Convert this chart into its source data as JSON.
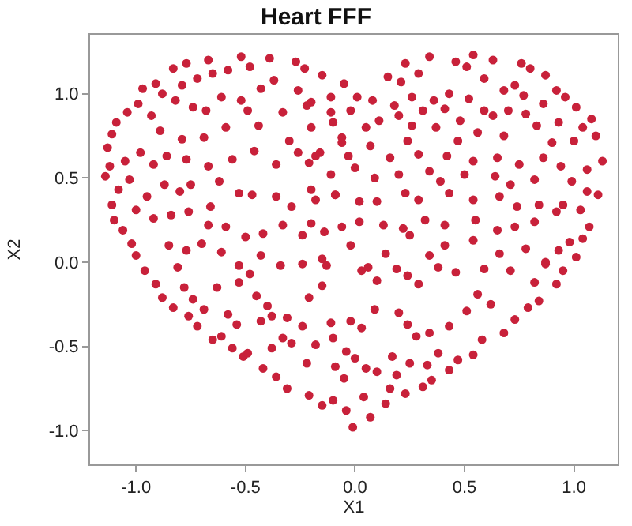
{
  "chart_data": {
    "type": "scatter",
    "title": "Heart FFF",
    "xlabel": "X1",
    "ylabel": "X2",
    "marker": "circle",
    "xlim": [
      -1.21,
      1.2
    ],
    "ylim": [
      -1.2,
      1.35
    ],
    "xticks": [
      {
        "value": -1,
        "label": "-1.0"
      },
      -0.5,
      {
        "value": 0,
        "label": "0.0"
      },
      0.5,
      {
        "value": 1,
        "label": "1.0"
      }
    ],
    "yticks": [
      {
        "value": -1,
        "label": "-1.0"
      },
      -0.5,
      {
        "value": 0,
        "label": "0.0"
      },
      0.5,
      {
        "value": 1,
        "label": "1.0"
      }
    ],
    "series": [
      {
        "color": "#c8213a",
        "x": [
          -1.14,
          -1.12,
          -1.13,
          -1.11,
          -1.09,
          -1.04,
          -0.99,
          -0.97,
          -0.91,
          -0.83,
          -0.77,
          -0.67,
          -0.52,
          -0.39,
          -0.27,
          -0.15,
          -0.05,
          -1.11,
          -1.1,
          -1.06,
          -1.02,
          -1.0,
          -0.96,
          -0.91,
          -0.88,
          -0.83,
          -0.76,
          -0.72,
          -0.65,
          -0.61,
          -0.56,
          -0.51,
          -0.42,
          -0.36,
          -0.31,
          -0.21,
          -0.15,
          -0.04,
          -0.01,
          0.07,
          0.14,
          0.23,
          0.31,
          0.35,
          0.43,
          0.47,
          0.54,
          0.58,
          0.68,
          0.73,
          0.79,
          0.84,
          0.92,
          0.95,
          0.87,
          1.11,
          1.13,
          1.1,
          1.08,
          1.04,
          1.01,
          0.96,
          0.92,
          0.87,
          0.8,
          0.76,
          0.63,
          0.54,
          0.46,
          0.34,
          0.23,
          0.15,
          -0.23,
          1.07,
          1.04,
          1.01,
          1.06,
          -0.88,
          -0.79,
          -0.72,
          -0.65,
          -0.58,
          -0.48,
          -0.37,
          -0.26,
          -0.82,
          -0.74,
          -0.68,
          -0.61,
          -0.52,
          -0.43,
          -0.33,
          -0.2,
          -0.11,
          -0.93,
          -0.89,
          -0.79,
          -0.69,
          -0.59,
          -0.49,
          -0.44,
          -0.3,
          -0.16,
          -0.06,
          -1.05,
          -0.98,
          -0.92,
          -0.86,
          -0.77,
          -0.67,
          -0.56,
          -0.46,
          -0.36,
          -0.26,
          -1.08,
          -1.03,
          -0.95,
          -0.87,
          -0.8,
          -0.75,
          -0.66,
          -0.62,
          -0.53,
          -0.47,
          -0.36,
          -0.29,
          -0.18,
          -0.09,
          -1.0,
          -0.92,
          -0.84,
          -0.76,
          -0.67,
          -0.59,
          -0.5,
          -0.42,
          -0.33,
          -0.24,
          -0.14,
          -0.85,
          -0.77,
          -0.7,
          -0.61,
          -0.53,
          -0.43,
          -0.34,
          -0.24,
          -0.13,
          -0.81,
          -0.78,
          -0.74,
          -0.69,
          -0.63,
          -0.58,
          -0.54,
          -0.53,
          -0.48,
          -0.45,
          -0.4,
          -0.38,
          -0.43,
          -0.49,
          -0.38,
          -0.33,
          -0.31,
          -0.24,
          -0.21,
          -0.29,
          -0.22,
          -0.18,
          -0.15,
          -0.11,
          -0.1,
          -0.09,
          -0.02,
          -0.05,
          0.0,
          0.03,
          0.06,
          0.1,
          0.19,
          0.24,
          0.29,
          0.38,
          0.46,
          0.59,
          0.71,
          0.82,
          0.56,
          0.62,
          0.51,
          0.43,
          0.34,
          0.24,
          0.2,
          0.09,
          0.03,
          -0.04,
          0.05,
          0.1,
          0.19,
          0.17,
          0.28,
          0.38,
          0.33,
          0.25,
          0.04,
          -0.1,
          0.16,
          0.01,
          0.08,
          0.18,
          0.26,
          0.36,
          0.43,
          0.52,
          0.59,
          0.68,
          0.73,
          0.77,
          0.86,
          0.51,
          0.29,
          0.21,
          -0.11,
          -0.22,
          -0.1,
          -0.02,
          0.11,
          0.2,
          0.31,
          0.41,
          0.48,
          0.59,
          0.7,
          0.78,
          0.93,
          -0.2,
          -0.06,
          0.05,
          0.16,
          0.26,
          0.37,
          0.47,
          0.56,
          0.63,
          0.68,
          0.83,
          0.9,
          1.0,
          -0.18,
          -0.03,
          0.07,
          0.24,
          0.29,
          0.42,
          0.54,
          0.65,
          0.75,
          0.86,
          0.94,
          -0.21,
          -0.11,
          0.0,
          0.09,
          0.2,
          0.34,
          0.39,
          0.5,
          0.64,
          0.71,
          0.82,
          0.99,
          1.06,
          -0.2,
          -0.09,
          0.02,
          0.1,
          0.23,
          0.29,
          0.43,
          0.54,
          0.66,
          0.74,
          0.84,
          0.95,
          -0.2,
          -0.06,
          0.02,
          0.13,
          0.22,
          0.32,
          0.41,
          0.55,
          0.65,
          0.73,
          0.82,
          0.92,
          1.03,
          -0.15,
          -0.02,
          0.14,
          0.25,
          0.34,
          0.41,
          0.54,
          0.66,
          0.78,
          0.87,
          0.93,
          0.98
        ],
        "values": [
          0.51,
          0.57,
          0.68,
          0.76,
          0.83,
          0.89,
          0.94,
          1.03,
          1.06,
          1.15,
          1.18,
          1.2,
          1.22,
          1.21,
          1.19,
          1.11,
          1.06,
          0.34,
          0.25,
          0.19,
          0.11,
          0.04,
          -0.05,
          -0.13,
          -0.21,
          -0.27,
          -0.32,
          -0.38,
          -0.46,
          -0.44,
          -0.51,
          -0.56,
          -0.63,
          -0.68,
          -0.75,
          -0.79,
          -0.85,
          -0.88,
          -0.98,
          -0.92,
          -0.84,
          -0.78,
          -0.74,
          -0.7,
          -0.64,
          -0.58,
          -0.55,
          -0.46,
          -0.42,
          -0.34,
          -0.27,
          -0.23,
          -0.13,
          -0.05,
          -0.01,
          0.4,
          0.6,
          0.75,
          0.85,
          0.8,
          0.92,
          0.98,
          1.02,
          1.11,
          1.15,
          1.18,
          1.2,
          1.23,
          1.19,
          1.22,
          1.18,
          1.1,
          1.15,
          0.21,
          0.14,
          0.03,
          0.55,
          1.0,
          1.05,
          1.09,
          1.12,
          1.14,
          1.16,
          1.08,
          1.02,
          0.96,
          0.92,
          0.9,
          0.98,
          0.96,
          1.03,
          0.89,
          0.95,
          0.89,
          0.87,
          0.78,
          0.73,
          0.74,
          0.8,
          0.9,
          0.81,
          0.72,
          0.65,
          0.71,
          0.6,
          0.65,
          0.58,
          0.63,
          0.61,
          0.57,
          0.61,
          0.66,
          0.58,
          0.65,
          0.43,
          0.49,
          0.39,
          0.46,
          0.42,
          0.46,
          0.33,
          0.48,
          0.41,
          0.4,
          0.39,
          0.33,
          0.37,
          0.4,
          0.31,
          0.26,
          0.28,
          0.3,
          0.22,
          0.21,
          0.15,
          0.17,
          0.22,
          0.16,
          0.18,
          0.1,
          0.07,
          0.11,
          0.06,
          -0.02,
          0.04,
          -0.02,
          -0.01,
          -0.02,
          -0.03,
          -0.15,
          -0.22,
          -0.28,
          -0.15,
          -0.31,
          -0.37,
          -0.12,
          -0.07,
          -0.2,
          -0.26,
          -0.32,
          -0.35,
          -0.54,
          -0.51,
          -0.45,
          -0.33,
          -0.38,
          -0.21,
          -0.48,
          -0.6,
          -0.49,
          -0.14,
          -0.36,
          -0.45,
          -0.62,
          -0.35,
          -0.69,
          -0.57,
          -0.05,
          -0.03,
          -0.11,
          -0.04,
          -0.08,
          -0.13,
          -0.03,
          -0.06,
          -0.04,
          -0.05,
          -0.12,
          -0.19,
          -0.25,
          -0.29,
          -0.38,
          -0.42,
          -0.37,
          -0.3,
          -0.28,
          -0.39,
          -0.53,
          -0.63,
          -0.65,
          -0.67,
          -0.56,
          -0.44,
          -0.54,
          -0.61,
          -0.6,
          -0.8,
          -0.82,
          -0.75,
          0.98,
          0.96,
          0.93,
          0.98,
          0.96,
          1.0,
          0.97,
          1.09,
          1.02,
          1.05,
          0.99,
          0.94,
          1.16,
          1.12,
          1.07,
          0.98,
          0.93,
          0.83,
          0.9,
          0.84,
          0.87,
          0.9,
          0.91,
          0.84,
          0.9,
          0.9,
          0.88,
          0.83,
          0.8,
          0.74,
          0.8,
          0.62,
          0.81,
          0.8,
          0.72,
          0.77,
          0.87,
          0.75,
          0.81,
          0.71,
          0.72,
          0.63,
          0.63,
          0.69,
          0.72,
          0.64,
          0.63,
          0.6,
          0.62,
          0.58,
          0.62,
          0.57,
          0.59,
          0.52,
          0.56,
          0.5,
          0.52,
          0.54,
          0.48,
          0.52,
          0.51,
          0.46,
          0.49,
          0.48,
          0.42,
          0.43,
          0.4,
          0.36,
          0.36,
          0.41,
          0.37,
          0.41,
          0.37,
          0.39,
          0.33,
          0.34,
          0.34,
          0.23,
          0.21,
          0.24,
          0.22,
          0.2,
          0.25,
          0.22,
          0.25,
          0.19,
          0.21,
          0.24,
          0.3,
          0.31,
          0.02,
          0.1,
          0.05,
          0.16,
          0.04,
          0.1,
          0.13,
          0.05,
          0.08,
          0.0,
          0.07,
          0.12
        ]
      }
    ]
  }
}
